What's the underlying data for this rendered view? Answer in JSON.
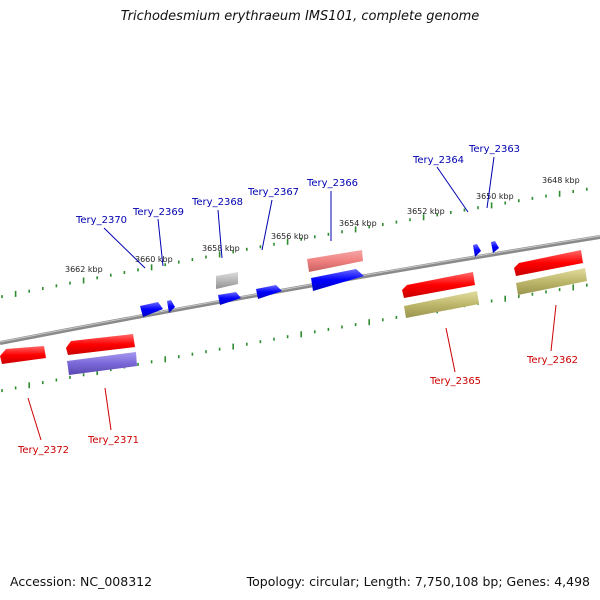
{
  "title": "Trichodesmium erythraeum IMS101, complete genome",
  "footer": {
    "accession": "Accession: NC_008312",
    "topology": "Topology: circular; Length: 7,750,108 bp; Genes: 4,498"
  },
  "colors": {
    "forward_gene": "#ff1010",
    "forward_cds_tan": "#bdb76b",
    "forward_cds_purple": "#7b68d8",
    "reverse_gene": "#1010ff",
    "reverse_cds_salmon": "#f08080",
    "reverse_cds_gray": "#b8b8b8",
    "backbone": "#808080",
    "tick": "#2e8b2e",
    "label_forward": "#cc0000",
    "label_reverse": "#0000b0"
  },
  "ruler_labels": [
    "3662 kbp",
    "3660 kbp",
    "3658 kbp",
    "3656 kbp",
    "3654 kbp",
    "3652 kbp",
    "3650 kbp",
    "3648 kbp"
  ],
  "genes_forward": [
    "Tery_2372",
    "Tery_2371",
    "Tery_2365",
    "Tery_2362"
  ],
  "genes_reverse": [
    "Tery_2370",
    "Tery_2369",
    "Tery_2368",
    "Tery_2367",
    "Tery_2366",
    "Tery_2364",
    "Tery_2363"
  ]
}
